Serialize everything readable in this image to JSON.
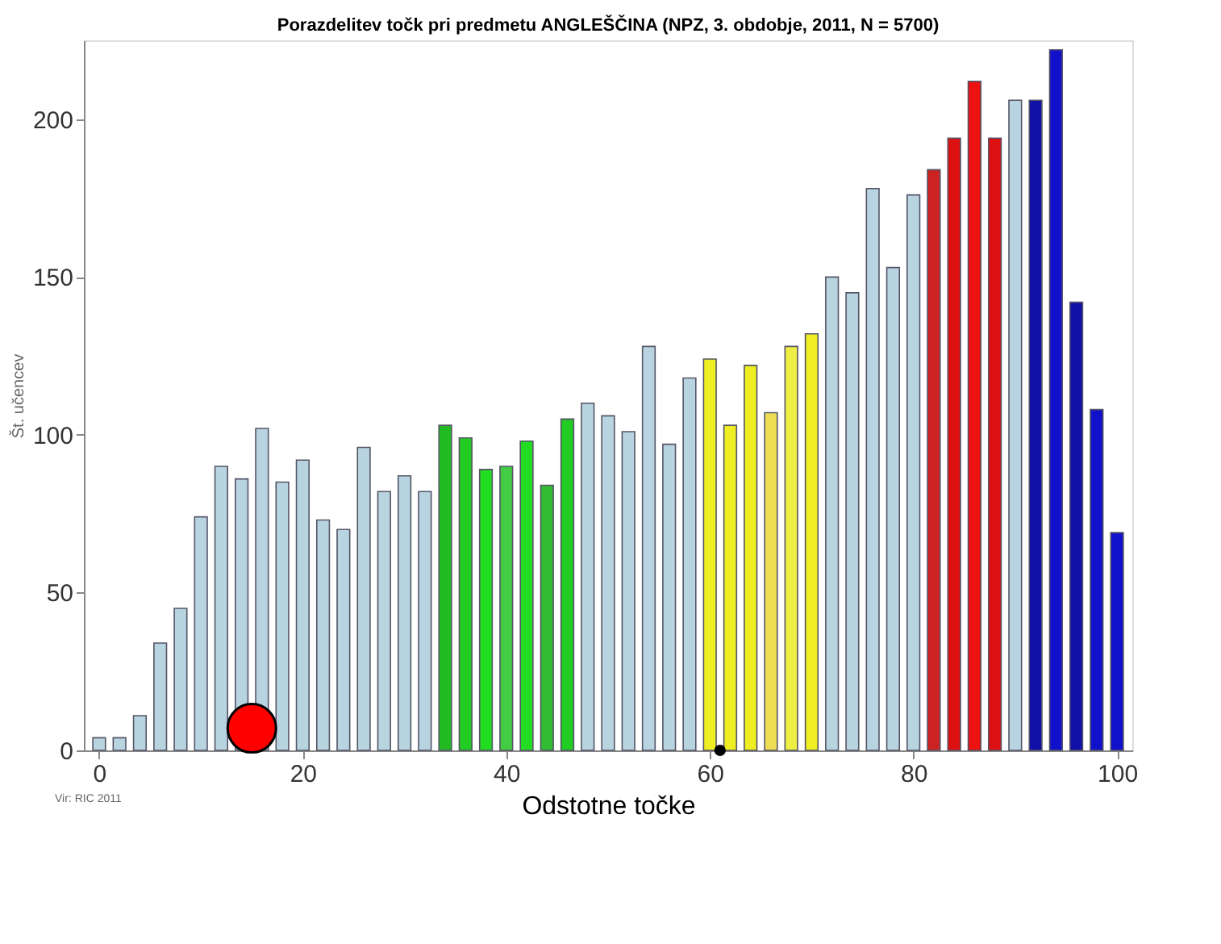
{
  "chart_data": {
    "type": "bar",
    "title": "Porazdelitev točk pri predmetu ANGLEŠČINA (NPZ, 3. obdobje, 2011, N = 5700)",
    "xlabel": "Odstotne točke",
    "ylabel": "Št. učencev",
    "annotations": [
      "Vir: RIC 2011"
    ],
    "x": [
      0,
      2,
      4,
      6,
      8,
      10,
      12,
      14,
      16,
      18,
      20,
      22,
      24,
      26,
      28,
      30,
      32,
      34,
      36,
      38,
      40,
      42,
      44,
      46,
      48,
      50,
      52,
      54,
      56,
      58,
      60,
      62,
      64,
      66,
      68,
      70,
      72,
      74,
      76,
      78,
      80,
      82,
      84,
      86,
      88,
      90,
      92,
      94,
      96,
      98,
      100
    ],
    "series": [
      {
        "values": [
          4,
          4,
          11,
          34,
          45,
          74,
          90,
          86,
          102,
          85,
          92,
          73,
          70,
          96,
          82,
          87,
          82,
          103,
          99,
          89,
          90,
          98,
          84,
          105,
          110,
          106,
          101,
          128,
          97,
          118,
          124,
          103,
          122,
          107,
          128,
          132,
          150,
          145,
          178,
          153,
          176,
          184,
          194,
          212,
          194,
          206,
          206,
          222,
          142,
          108,
          69
        ],
        "colors": [
          "#b8d4e0",
          "#b8d4e0",
          "#b8d4e0",
          "#b8d4e0",
          "#b8d4e0",
          "#b8d4e0",
          "#b8d4e0",
          "#b8d4e0",
          "#b8d4e0",
          "#b8d4e0",
          "#b8d4e0",
          "#b8d4e0",
          "#b8d4e0",
          "#b8d4e0",
          "#b8d4e0",
          "#b8d4e0",
          "#b8d4e0",
          "#22bb22",
          "#22cc22",
          "#22dd22",
          "#44cc44",
          "#22dd22",
          "#33bb33",
          "#22cc22",
          "#b8d4e0",
          "#b8d4e0",
          "#b8d4e0",
          "#b8d4e0",
          "#b8d4e0",
          "#b8d4e0",
          "#eeee22",
          "#eeee22",
          "#eeee22",
          "#eedd55",
          "#eeee44",
          "#eeee22",
          "#b8d4e0",
          "#b8d4e0",
          "#b8d4e0",
          "#b8d4e0",
          "#b8d4e0",
          "#cc2222",
          "#dd1111",
          "#ee1111",
          "#dd1111",
          "#b8d4e0",
          "#1111aa",
          "#1111cc",
          "#1111aa",
          "#1111cc",
          "#1111cc"
        ]
      },
      {
        "type": "scatter",
        "x": [
          15
        ],
        "values": [
          7
        ],
        "color": "#ff0000",
        "marker": "circle"
      },
      {
        "type": "scatter",
        "x": [
          61
        ],
        "values": [
          0
        ],
        "color": "#000000",
        "marker": "circle"
      }
    ],
    "xlim": [
      -1.5,
      101.5
    ],
    "xticks": [
      0,
      20,
      40,
      60,
      80,
      100
    ],
    "ylim": [
      0,
      225
    ],
    "yticks": [
      0,
      50,
      100,
      150,
      200
    ],
    "grid": false
  }
}
